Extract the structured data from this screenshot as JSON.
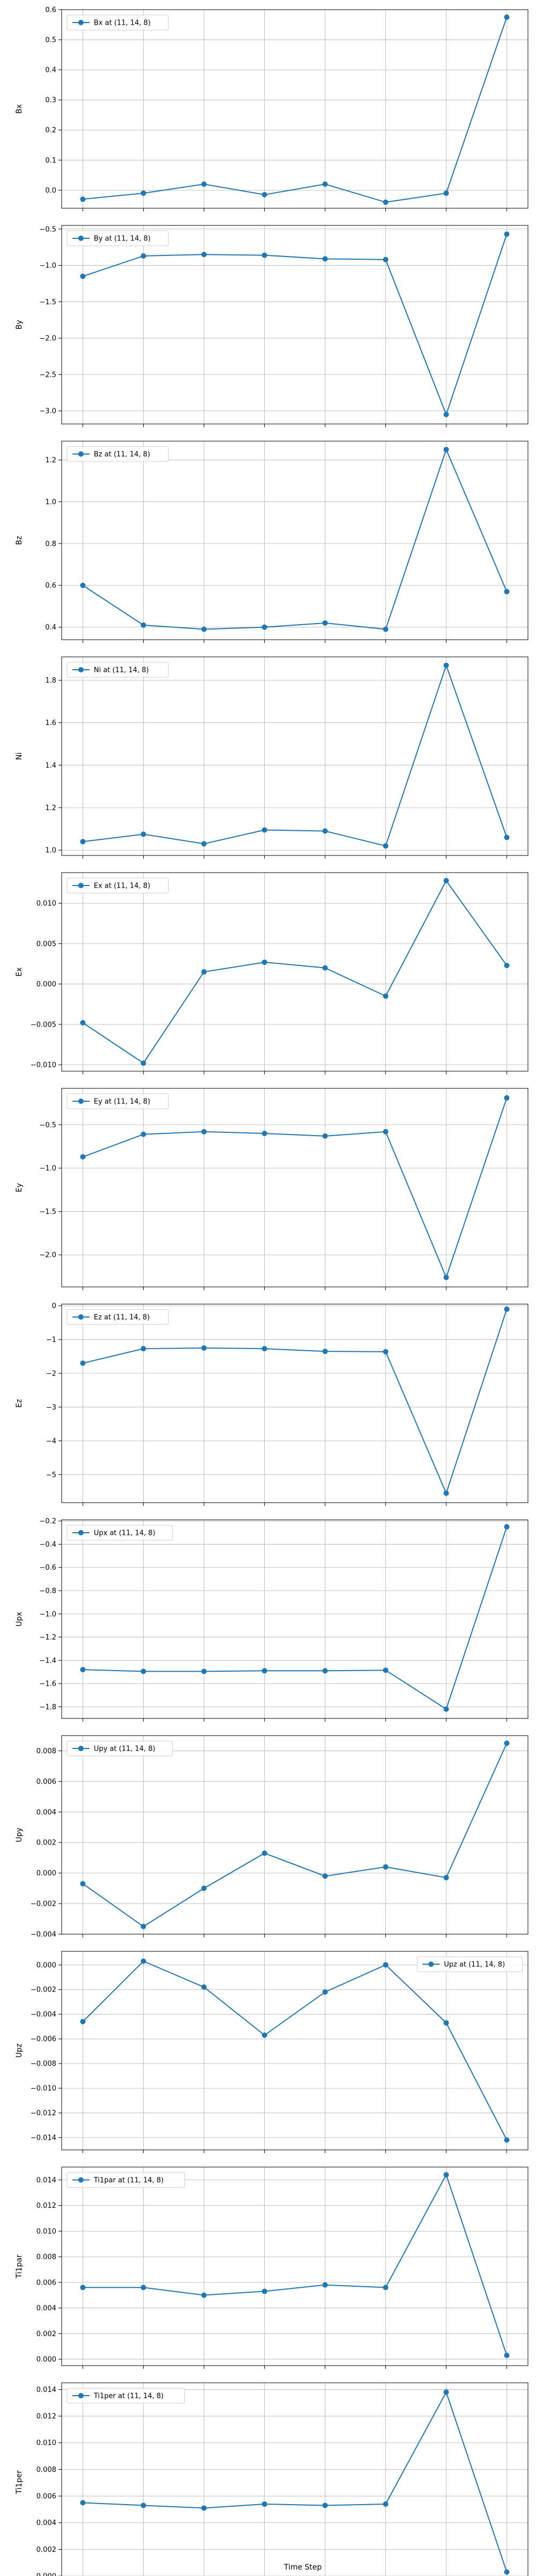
{
  "figure": {
    "xlabel": "Time Step"
  },
  "chart_data": [
    {
      "type": "line",
      "ylabel": "Bx",
      "x": [
        0,
        1,
        2,
        3,
        4,
        5,
        6,
        7
      ],
      "series": [
        {
          "name": "Bx at (11, 14, 8)",
          "values": [
            -0.03,
            -0.01,
            0.02,
            -0.015,
            0.02,
            -0.04,
            -0.01,
            0.575
          ],
          "color": "#1f77b4"
        }
      ],
      "ylim": [
        -0.06,
        0.6
      ],
      "yticks": [
        0.0,
        0.1,
        0.2,
        0.3,
        0.4,
        0.5,
        0.6
      ],
      "xticks": [
        0,
        1,
        2,
        3,
        4,
        5,
        6,
        7
      ],
      "xlim": [
        -0.35,
        7.35
      ],
      "grid": true,
      "legend": "upper-left"
    },
    {
      "type": "line",
      "ylabel": "By",
      "x": [
        0,
        1,
        2,
        3,
        4,
        5,
        6,
        7
      ],
      "series": [
        {
          "name": "By at (11, 14, 8)",
          "values": [
            -1.15,
            -0.87,
            -0.85,
            -0.86,
            -0.91,
            -0.92,
            -3.05,
            -0.57
          ],
          "color": "#1f77b4"
        }
      ],
      "ylim": [
        -3.18,
        -0.45
      ],
      "yticks": [
        -3.0,
        -2.5,
        -2.0,
        -1.5,
        -1.0,
        -0.5
      ],
      "xticks": [
        0,
        1,
        2,
        3,
        4,
        5,
        6,
        7
      ],
      "xlim": [
        -0.35,
        7.35
      ],
      "grid": true,
      "legend": "upper-left"
    },
    {
      "type": "line",
      "ylabel": "Bz",
      "x": [
        0,
        1,
        2,
        3,
        4,
        5,
        6,
        7
      ],
      "series": [
        {
          "name": "Bz at (11, 14, 8)",
          "values": [
            0.6,
            0.41,
            0.39,
            0.4,
            0.42,
            0.39,
            1.25,
            0.57
          ],
          "color": "#1f77b4"
        }
      ],
      "ylim": [
        0.34,
        1.29
      ],
      "yticks": [
        0.4,
        0.6,
        0.8,
        1.0,
        1.2
      ],
      "xticks": [
        0,
        1,
        2,
        3,
        4,
        5,
        6,
        7
      ],
      "xlim": [
        -0.35,
        7.35
      ],
      "grid": true,
      "legend": "upper-left"
    },
    {
      "type": "line",
      "ylabel": "Ni",
      "x": [
        0,
        1,
        2,
        3,
        4,
        5,
        6,
        7
      ],
      "series": [
        {
          "name": "Ni at (11, 14, 8)",
          "values": [
            1.04,
            1.075,
            1.03,
            1.095,
            1.09,
            1.02,
            1.87,
            1.06
          ],
          "color": "#1f77b4"
        }
      ],
      "ylim": [
        0.975,
        1.91
      ],
      "yticks": [
        1.0,
        1.2,
        1.4,
        1.6,
        1.8
      ],
      "xticks": [
        0,
        1,
        2,
        3,
        4,
        5,
        6,
        7
      ],
      "xlim": [
        -0.35,
        7.35
      ],
      "grid": true,
      "legend": "upper-left"
    },
    {
      "type": "line",
      "ylabel": "Ex",
      "x": [
        0,
        1,
        2,
        3,
        4,
        5,
        6,
        7
      ],
      "series": [
        {
          "name": "Ex at (11, 14, 8)",
          "values": [
            -0.0048,
            -0.0098,
            0.0015,
            0.0027,
            0.002,
            -0.0015,
            0.0128,
            0.0023
          ],
          "color": "#1f77b4"
        }
      ],
      "ylim": [
        -0.0108,
        0.0138
      ],
      "yticks": [
        -0.01,
        -0.005,
        0.0,
        0.005,
        0.01
      ],
      "xticks": [
        0,
        1,
        2,
        3,
        4,
        5,
        6,
        7
      ],
      "xlim": [
        -0.35,
        7.35
      ],
      "grid": true,
      "legend": "upper-left"
    },
    {
      "type": "line",
      "ylabel": "Ey",
      "x": [
        0,
        1,
        2,
        3,
        4,
        5,
        6,
        7
      ],
      "series": [
        {
          "name": "Ey at (11, 14, 8)",
          "values": [
            -0.87,
            -0.61,
            -0.58,
            -0.6,
            -0.63,
            -0.58,
            -2.26,
            -0.19
          ],
          "color": "#1f77b4"
        }
      ],
      "ylim": [
        -2.37,
        -0.08
      ],
      "yticks": [
        -2.0,
        -1.5,
        -1.0,
        -0.5
      ],
      "xticks": [
        0,
        1,
        2,
        3,
        4,
        5,
        6,
        7
      ],
      "xlim": [
        -0.35,
        7.35
      ],
      "grid": true,
      "legend": "upper-left"
    },
    {
      "type": "line",
      "ylabel": "Ez",
      "x": [
        0,
        1,
        2,
        3,
        4,
        5,
        6,
        7
      ],
      "series": [
        {
          "name": "Ez at (11, 14, 8)",
          "values": [
            -1.7,
            -1.27,
            -1.25,
            -1.27,
            -1.35,
            -1.36,
            -5.55,
            -0.1
          ],
          "color": "#1f77b4"
        }
      ],
      "ylim": [
        -5.83,
        0.05
      ],
      "yticks": [
        -5,
        -4,
        -3,
        -2,
        -1,
        0
      ],
      "xticks": [
        0,
        1,
        2,
        3,
        4,
        5,
        6,
        7
      ],
      "xlim": [
        -0.35,
        7.35
      ],
      "grid": true,
      "legend": "upper-left"
    },
    {
      "type": "line",
      "ylabel": "Upx",
      "x": [
        0,
        1,
        2,
        3,
        4,
        5,
        6,
        7
      ],
      "series": [
        {
          "name": "Upx at (11, 14, 8)",
          "values": [
            -1.48,
            -1.495,
            -1.495,
            -1.49,
            -1.49,
            -1.485,
            -1.82,
            -0.25
          ],
          "color": "#1f77b4"
        }
      ],
      "ylim": [
        -1.9,
        -0.19
      ],
      "yticks": [
        -1.8,
        -1.6,
        -1.4,
        -1.2,
        -1.0,
        -0.8,
        -0.6,
        -0.4,
        -0.2
      ],
      "xticks": [
        0,
        1,
        2,
        3,
        4,
        5,
        6,
        7
      ],
      "xlim": [
        -0.35,
        7.35
      ],
      "grid": true,
      "legend": "upper-left"
    },
    {
      "type": "line",
      "ylabel": "Upy",
      "x": [
        0,
        1,
        2,
        3,
        4,
        5,
        6,
        7
      ],
      "series": [
        {
          "name": "Upy at (11, 14, 8)",
          "values": [
            -0.0007,
            -0.0035,
            -0.001,
            0.0013,
            -0.0002,
            0.0004,
            -0.0003,
            0.0085
          ],
          "color": "#1f77b4"
        }
      ],
      "ylim": [
        -0.004,
        0.009
      ],
      "yticks": [
        -0.004,
        -0.002,
        0.0,
        0.002,
        0.004,
        0.006,
        0.008
      ],
      "xticks": [
        0,
        1,
        2,
        3,
        4,
        5,
        6,
        7
      ],
      "xlim": [
        -0.35,
        7.35
      ],
      "grid": true,
      "legend": "upper-left"
    },
    {
      "type": "line",
      "ylabel": "Upz",
      "x": [
        0,
        1,
        2,
        3,
        4,
        5,
        6,
        7
      ],
      "series": [
        {
          "name": "Upz at (11, 14, 8)",
          "values": [
            -0.0046,
            0.0003,
            -0.0018,
            -0.0057,
            -0.0022,
            0.0,
            -0.0047,
            -0.0142
          ],
          "color": "#1f77b4"
        }
      ],
      "ylim": [
        -0.015,
        0.0011
      ],
      "yticks": [
        -0.014,
        -0.012,
        -0.01,
        -0.008,
        -0.006,
        -0.004,
        -0.002,
        0.0
      ],
      "xticks": [
        0,
        1,
        2,
        3,
        4,
        5,
        6,
        7
      ],
      "xlim": [
        -0.35,
        7.35
      ],
      "grid": true,
      "legend": "upper-right"
    },
    {
      "type": "line",
      "ylabel": "Ti1par",
      "x": [
        0,
        1,
        2,
        3,
        4,
        5,
        6,
        7
      ],
      "series": [
        {
          "name": "Ti1par at (11, 14, 8)",
          "values": [
            0.0056,
            0.0056,
            0.005,
            0.0053,
            0.0058,
            0.0056,
            0.0144,
            0.0003
          ],
          "color": "#1f77b4"
        }
      ],
      "ylim": [
        -0.0005,
        0.015
      ],
      "yticks": [
        0.0,
        0.002,
        0.004,
        0.006,
        0.008,
        0.01,
        0.012,
        0.014
      ],
      "xticks": [
        0,
        1,
        2,
        3,
        4,
        5,
        6,
        7
      ],
      "xlim": [
        -0.35,
        7.35
      ],
      "grid": true,
      "legend": "upper-left"
    },
    {
      "type": "line",
      "ylabel": "Ti1per",
      "x": [
        0,
        1,
        2,
        3,
        4,
        5,
        6,
        7
      ],
      "series": [
        {
          "name": "Ti1per at (11, 14, 8)",
          "values": [
            0.0055,
            0.0053,
            0.0051,
            0.0054,
            0.0053,
            0.0054,
            0.0138,
            0.0003
          ],
          "color": "#1f77b4"
        }
      ],
      "ylim": [
        -0.0004,
        0.0145
      ],
      "yticks": [
        0.0,
        0.002,
        0.004,
        0.006,
        0.008,
        0.01,
        0.012,
        0.014
      ],
      "xticks": [
        0,
        1,
        2,
        3,
        4,
        5,
        6,
        7
      ],
      "xlim": [
        -0.35,
        7.35
      ],
      "grid": true,
      "legend": "upper-left"
    }
  ]
}
